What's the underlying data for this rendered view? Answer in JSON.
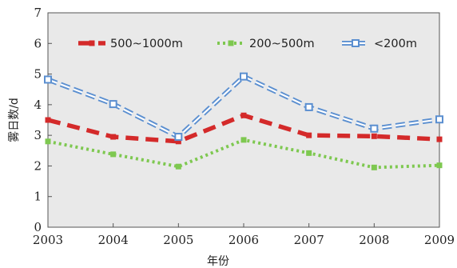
{
  "chart_data": {
    "type": "line",
    "x": [
      "2003",
      "2004",
      "2005",
      "2006",
      "2007",
      "2008",
      "2009"
    ],
    "xlabel": "年份",
    "ylabel": "雾日数/d",
    "ylim": [
      0,
      7
    ],
    "yticks": [
      "0",
      "1",
      "2",
      "3",
      "4",
      "5",
      "6",
      "7"
    ],
    "grid": false,
    "legend_position": "top",
    "plot_background": "#e9e9e9",
    "series": [
      {
        "name": "500~1000m",
        "color": "#d42a2a",
        "line_style": "long-dash",
        "marker": "square",
        "values": [
          3.5,
          2.95,
          2.8,
          3.65,
          3.0,
          2.97,
          2.87
        ]
      },
      {
        "name": "200~500m",
        "color": "#7ec850",
        "line_style": "dotted",
        "marker": "square",
        "values": [
          2.8,
          2.38,
          1.98,
          2.85,
          2.42,
          1.95,
          2.02
        ]
      },
      {
        "name": "<200m",
        "color": "#5b8fd0",
        "line_style": "hollow-dash",
        "marker": "square",
        "values": [
          4.82,
          4.02,
          2.95,
          4.92,
          3.92,
          3.22,
          3.52
        ]
      }
    ]
  }
}
